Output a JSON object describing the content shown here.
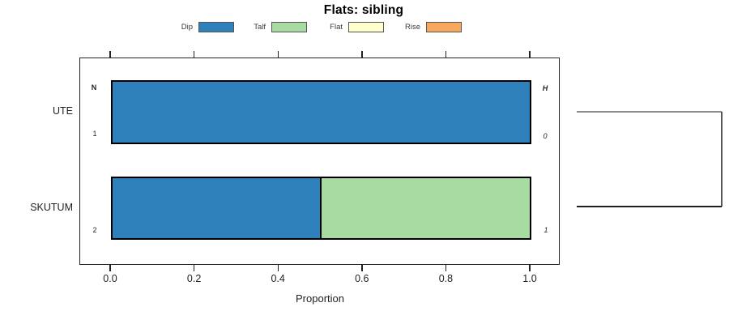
{
  "title": "Flats: sibling",
  "legend": {
    "items": [
      {
        "label": "Dip",
        "color": "#2E81BB"
      },
      {
        "label": "Talf",
        "color": "#A8DBA2"
      },
      {
        "label": "Flat",
        "color": "#FFFFCC"
      },
      {
        "label": "Rise",
        "color": "#F9A75F"
      }
    ]
  },
  "axis": {
    "x_tick_labels": [
      "0.0",
      "0.2",
      "0.4",
      "0.6",
      "0.8",
      "1.0"
    ],
    "xlabel": "Proportion"
  },
  "rows": [
    {
      "category": "UTE",
      "header_left": "N",
      "count": "1",
      "header_right": "H",
      "value_right": "0",
      "segments": [
        {
          "label": "Dip",
          "color": "#2E81BB",
          "value": 1
        }
      ]
    },
    {
      "category": "SKUTUM",
      "count": "2",
      "value_right": "1",
      "segments": [
        {
          "label": "Dip",
          "color": "#2E81BB",
          "value": 0.5
        },
        {
          "label": "Talf",
          "color": "#A8DBA2",
          "value": 0.5
        }
      ]
    }
  ],
  "chart_data": {
    "type": "bar",
    "orientation": "horizontal",
    "stacked": true,
    "title": "Flats: sibling",
    "xlabel": "Proportion",
    "ylabel": "",
    "xlim": [
      0,
      1
    ],
    "x_ticks": [
      0.0,
      0.2,
      0.4,
      0.6,
      0.8,
      1.0
    ],
    "categories": [
      "UTE",
      "SKUTUM"
    ],
    "series": [
      {
        "name": "Dip",
        "color": "#2E81BB",
        "values": [
          1.0,
          0.5
        ]
      },
      {
        "name": "Talf",
        "color": "#A8DBA2",
        "values": [
          0.0,
          0.5
        ]
      },
      {
        "name": "Flat",
        "color": "#FFFFCC",
        "values": [
          0.0,
          0.0
        ]
      },
      {
        "name": "Rise",
        "color": "#F9A75F",
        "values": [
          0.0,
          0.0
        ]
      }
    ],
    "legend_position": "top",
    "grid": false,
    "annotations": {
      "left_header": "N",
      "left_values": [
        "1",
        "2"
      ],
      "right_header": "H",
      "right_values": [
        "0",
        "1"
      ],
      "dendrogram_bracket_right": true
    }
  }
}
